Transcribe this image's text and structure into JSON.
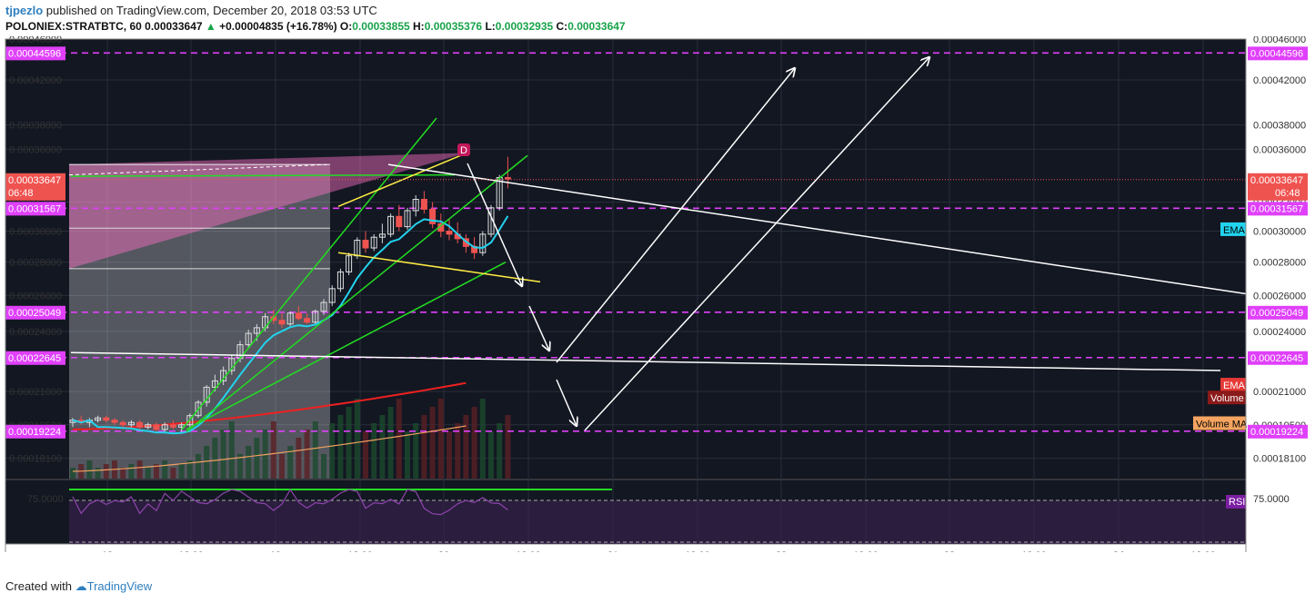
{
  "header": {
    "author": "tjpezlo",
    "published": "published on TradingView.com, December 20, 2018 03:53 UTC",
    "symbol": "POLONIEX:STRATBTC, 60",
    "last": "0.00033647",
    "change": "+0.00004835 (+16.78%)",
    "o_label": "O:",
    "o_value": "0.00033855",
    "h_label": "H:",
    "h_value": "0.00035376",
    "l_label": "L:",
    "l_value": "0.00032935",
    "c_label": "C:",
    "c_value": "0.00033647"
  },
  "footer": {
    "created": "Created with",
    "brand": "TradingView"
  },
  "colors": {
    "background": "#131722",
    "grid": "#2a2e39",
    "bull": "#ffffff",
    "bear": "#ef5350",
    "magenta": "#e040fb",
    "price_tag": "#ef5350",
    "ema_fast": "#22d3ee",
    "ema_slow": "#ef2020",
    "volume_ma": "#f0a060",
    "trend_green": "#22dd22",
    "channel_yellow": "#ffee44",
    "rsi": "#8e44ad"
  },
  "chart_data": {
    "type": "candlestick",
    "y_axis": {
      "min": 0.000173,
      "max": 0.00046,
      "scale": "log",
      "ticks": [
        "0.00046000",
        "0.00042000",
        "0.00038000",
        "0.00036000",
        "0.00032000",
        "0.00030000",
        "0.00028000",
        "0.00026000",
        "0.00024000",
        "0.00021000",
        "0.00019500",
        "0.00018100"
      ]
    },
    "x_axis": {
      "ticks": [
        "18",
        "12:00",
        "19",
        "12:00",
        "20",
        "12:00",
        "21",
        "12:00",
        "22",
        "12:00",
        "23",
        "12:00",
        "24",
        "12:00"
      ]
    },
    "current_price": "0.00033647",
    "countdown": "06:48",
    "horizontal_levels": [
      "0.00044596",
      "0.00031567",
      "0.00025049",
      "0.00022645",
      "0.00019224"
    ],
    "candles": [
      [
        0.000196,
        0.000198,
        0.000194,
        0.000197
      ],
      [
        0.000197,
        0.000199,
        0.000195,
        0.000196
      ],
      [
        0.000196,
        0.000198,
        0.000194,
        0.000197
      ],
      [
        0.000197,
        0.000199,
        0.000196,
        0.000198
      ],
      [
        0.000198,
        0.000199,
        0.000196,
        0.000197
      ],
      [
        0.000197,
        0.000198,
        0.000195,
        0.000196
      ],
      [
        0.000196,
        0.000197,
        0.000194,
        0.000195
      ],
      [
        0.000195,
        0.000197,
        0.000194,
        0.000196
      ],
      [
        0.000196,
        0.000197,
        0.000193,
        0.000194
      ],
      [
        0.000194,
        0.000196,
        0.000193,
        0.000195
      ],
      [
        0.000195,
        0.000196,
        0.000192,
        0.000193
      ],
      [
        0.000193,
        0.000196,
        0.000192,
        0.000195
      ],
      [
        0.000195,
        0.000197,
        0.000193,
        0.000194
      ],
      [
        0.000194,
        0.000196,
        0.000192,
        0.000195
      ],
      [
        0.000195,
        0.0002,
        0.000194,
        0.000199
      ],
      [
        0.000199,
        0.000206,
        0.000198,
        0.000205
      ],
      [
        0.000205,
        0.000213,
        0.000203,
        0.000212
      ],
      [
        0.000212,
        0.000218,
        0.00021,
        0.000215
      ],
      [
        0.000215,
        0.000222,
        0.000213,
        0.00022
      ],
      [
        0.00022,
        0.000228,
        0.000218,
        0.000226
      ],
      [
        0.000226,
        0.000235,
        0.000224,
        0.000233
      ],
      [
        0.000233,
        0.000241,
        0.000231,
        0.000239
      ],
      [
        0.000239,
        0.000244,
        0.000235,
        0.000242
      ],
      [
        0.000242,
        0.00025,
        0.00024,
        0.000248
      ],
      [
        0.000248,
        0.000252,
        0.000244,
        0.000246
      ],
      [
        0.000246,
        0.00025,
        0.000242,
        0.000244
      ],
      [
        0.000244,
        0.000251,
        0.000243,
        0.00025
      ],
      [
        0.00025,
        0.000254,
        0.000246,
        0.000247
      ],
      [
        0.000247,
        0.00025,
        0.000244,
        0.000245
      ],
      [
        0.000245,
        0.000252,
        0.000244,
        0.000251
      ],
      [
        0.000251,
        0.000258,
        0.000249,
        0.000256
      ],
      [
        0.000256,
        0.000266,
        0.000254,
        0.000264
      ],
      [
        0.000264,
        0.000276,
        0.000262,
        0.000274
      ],
      [
        0.000274,
        0.000286,
        0.000272,
        0.000284
      ],
      [
        0.000284,
        0.000296,
        0.000282,
        0.000294
      ],
      [
        0.000294,
        0.0003,
        0.000286,
        0.000289
      ],
      [
        0.000289,
        0.000298,
        0.000287,
        0.000296
      ],
      [
        0.000296,
        0.000305,
        0.000292,
        0.000298
      ],
      [
        0.000298,
        0.000312,
        0.000296,
        0.00031
      ],
      [
        0.00031,
        0.000318,
        0.0003,
        0.000303
      ],
      [
        0.000303,
        0.000316,
        0.000301,
        0.000314
      ],
      [
        0.000314,
        0.000325,
        0.00031,
        0.000322
      ],
      [
        0.000322,
        0.000328,
        0.000312,
        0.000315
      ],
      [
        0.000315,
        0.00032,
        0.000302,
        0.000305
      ],
      [
        0.000305,
        0.000312,
        0.000296,
        0.0003
      ],
      [
        0.0003,
        0.000308,
        0.000294,
        0.000298
      ],
      [
        0.000298,
        0.000306,
        0.000292,
        0.000295
      ],
      [
        0.000295,
        0.000298,
        0.000286,
        0.00029
      ],
      [
        0.00029,
        0.000296,
        0.000282,
        0.000286
      ],
      [
        0.000286,
        0.0003,
        0.000284,
        0.000298
      ],
      [
        0.000298,
        0.000318,
        0.000296,
        0.000316
      ],
      [
        0.000316,
        0.00034,
        0.000314,
        0.000338
      ],
      [
        0.000338,
        0.000354,
        0.00033,
        0.000337
      ]
    ],
    "indicator_labels": [
      "EMA",
      "EMA",
      "Volume",
      "Volume MA"
    ],
    "rsi": {
      "label": "RSI",
      "level": "75.0000"
    },
    "logo_mark": "D"
  }
}
